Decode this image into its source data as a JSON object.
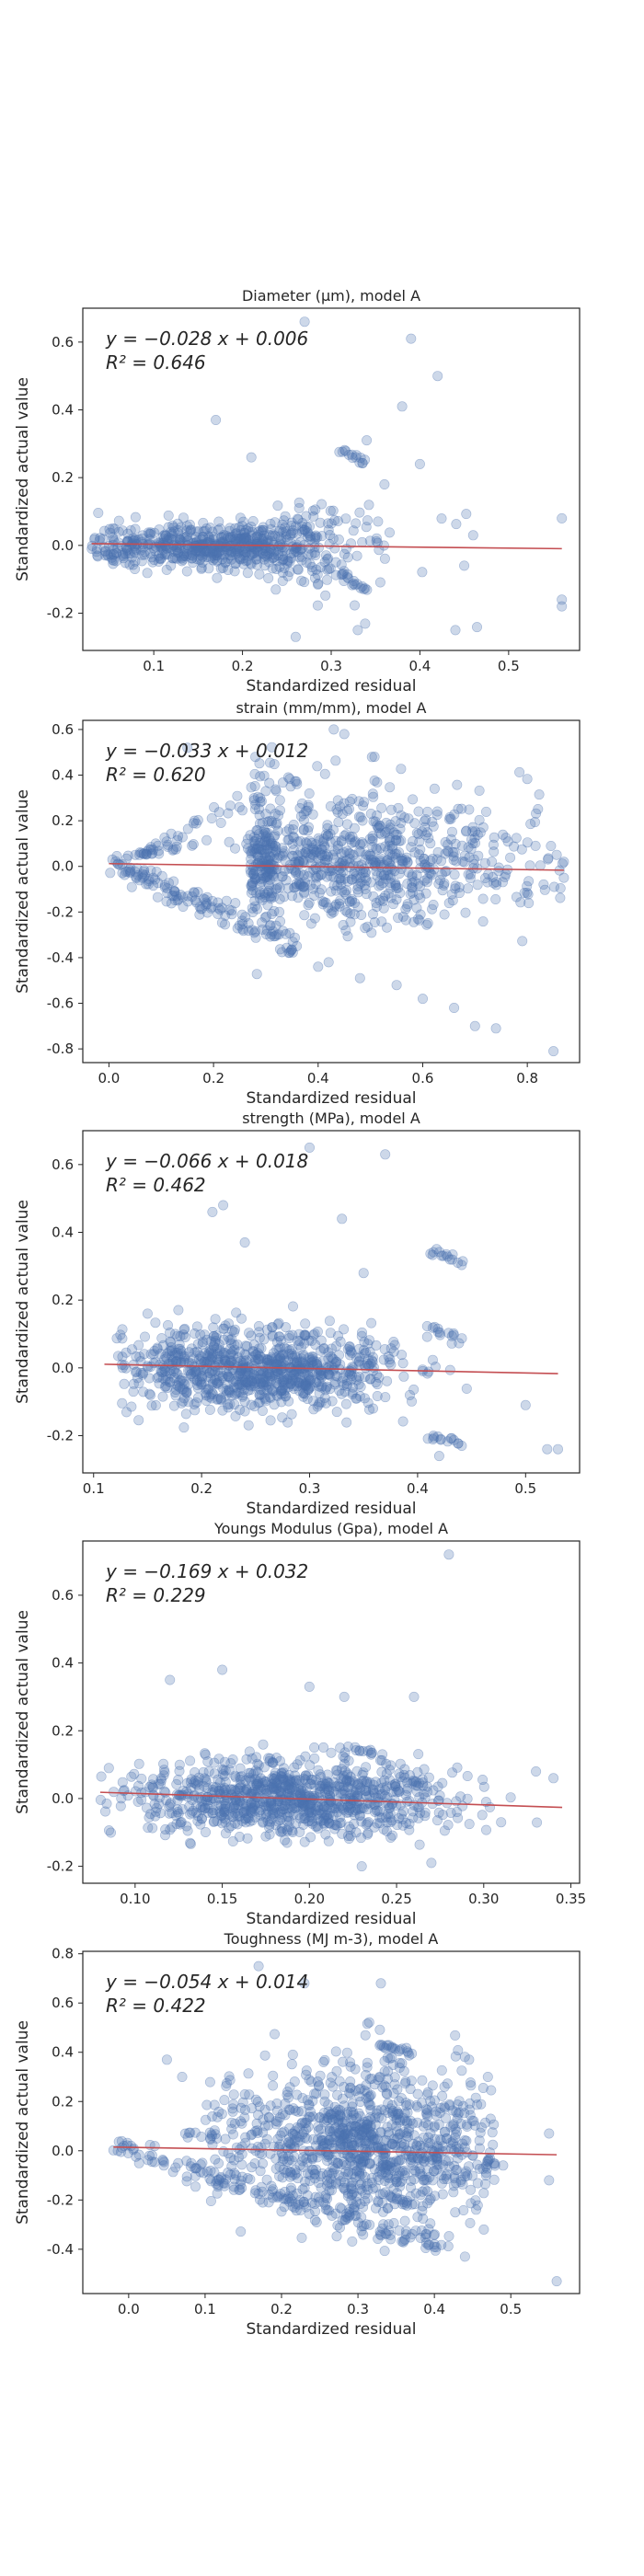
{
  "colors": {
    "points": "#4c72b0",
    "fit_line": "#c44e52",
    "frame": "#262626"
  },
  "chart_data": [
    {
      "type": "scatter",
      "title": "Diameter (µm), model A",
      "xlabel": "Standardized residual",
      "ylabel": "Standardized actual value",
      "xlim": [
        0.02,
        0.58
      ],
      "ylim": [
        -0.31,
        0.7
      ],
      "xticks": [
        0.1,
        0.2,
        0.3,
        0.4,
        0.5
      ],
      "yticks": [
        -0.2,
        0.0,
        0.2,
        0.4,
        0.6
      ],
      "equation": "y = −0.028 x + 0.006",
      "r2_text": "R² = 0.646",
      "fit": {
        "slope": -0.028,
        "intercept": 0.006,
        "x_range": [
          0.03,
          0.56
        ]
      },
      "cloud": {
        "seed": 11,
        "n": 700,
        "xc": 0.18,
        "xs": 0.08,
        "xmin": 0.03,
        "xmax": 0.47,
        "ys": 0.055,
        "shape": "tail",
        "clusters": [
          {
            "x": [
              0.31,
              0.34
            ],
            "y": [
              0.28,
              0.24
            ]
          },
          {
            "x": [
              0.31,
              0.34
            ],
            "y": [
              -0.08,
              -0.13
            ]
          }
        ]
      },
      "points": [
        [
          0.56,
          -0.18
        ],
        [
          0.56,
          -0.16
        ],
        [
          0.56,
          0.08
        ],
        [
          0.27,
          0.66
        ],
        [
          0.39,
          0.61
        ],
        [
          0.42,
          0.5
        ],
        [
          0.38,
          0.41
        ],
        [
          0.17,
          0.37
        ],
        [
          0.34,
          0.31
        ],
        [
          0.36,
          0.18
        ],
        [
          0.4,
          0.24
        ],
        [
          0.44,
          -0.25
        ],
        [
          0.33,
          -0.25
        ],
        [
          0.26,
          -0.27
        ],
        [
          0.21,
          0.26
        ],
        [
          0.46,
          0.03
        ],
        [
          0.45,
          -0.06
        ]
      ],
      "grid": false
    },
    {
      "type": "scatter",
      "title": "strain (mm/mm), model A",
      "xlabel": "Standardized residual",
      "ylabel": "Standardized actual value",
      "xlim": [
        -0.05,
        0.9
      ],
      "ylim": [
        -0.86,
        0.64
      ],
      "xticks": [
        0.0,
        0.2,
        0.4,
        0.6,
        0.8
      ],
      "yticks": [
        -0.8,
        -0.6,
        -0.4,
        -0.2,
        0.0,
        0.2,
        0.4,
        0.6
      ],
      "equation": "y = −0.033 x + 0.012",
      "r2_text": "R² = 0.620",
      "fit": {
        "slope": -0.033,
        "intercept": 0.012,
        "x_range": [
          0.0,
          0.87
        ]
      },
      "cloud": {
        "seed": 23,
        "n": 850,
        "xc": 0.45,
        "xs": 0.18,
        "xmin": 0.27,
        "xmax": 0.87,
        "ys": 0.11,
        "shape": "band",
        "diag": {
          "n": 140,
          "x0": 0.0,
          "x1": 0.36,
          "slope": -1.0,
          "jitter": 0.03
        },
        "upper": {
          "n": 60,
          "x0": 0.05,
          "x1": 0.3,
          "slope": 1.4
        },
        "clusters": []
      },
      "points": [
        [
          0.45,
          0.58
        ],
        [
          0.43,
          0.6
        ],
        [
          0.15,
          0.52
        ],
        [
          0.7,
          -0.7
        ],
        [
          0.74,
          -0.71
        ],
        [
          0.85,
          -0.81
        ],
        [
          0.66,
          -0.62
        ],
        [
          0.6,
          -0.58
        ],
        [
          0.55,
          -0.52
        ],
        [
          0.48,
          -0.49
        ],
        [
          0.42,
          -0.42
        ],
        [
          0.4,
          -0.44
        ],
        [
          0.87,
          -0.05
        ],
        [
          0.87,
          0.02
        ],
        [
          0.28,
          0.48
        ]
      ],
      "grid": false
    },
    {
      "type": "scatter",
      "title": "strength (MPa), model A",
      "xlabel": "Standardized residual",
      "ylabel": "Standardized actual value",
      "xlim": [
        0.09,
        0.55
      ],
      "ylim": [
        -0.31,
        0.7
      ],
      "xticks": [
        0.1,
        0.2,
        0.3,
        0.4,
        0.5
      ],
      "yticks": [
        -0.2,
        0.0,
        0.2,
        0.4,
        0.6
      ],
      "equation": "y = −0.066 x + 0.018",
      "r2_text": "R² = 0.462",
      "fit": {
        "slope": -0.066,
        "intercept": 0.018,
        "x_range": [
          0.11,
          0.53
        ]
      },
      "cloud": {
        "seed": 37,
        "n": 900,
        "xc": 0.25,
        "xs": 0.06,
        "xmin": 0.12,
        "xmax": 0.52,
        "ys": 0.06,
        "shape": "plain",
        "clusters": [
          {
            "x": [
              0.41,
              0.44
            ],
            "y": [
              0.35,
              0.31
            ]
          },
          {
            "x": [
              0.41,
              0.44
            ],
            "y": [
              -0.2,
              -0.23
            ]
          },
          {
            "x": [
              0.41,
              0.44
            ],
            "y": [
              0.12,
              0.08
            ]
          }
        ]
      },
      "points": [
        [
          0.3,
          0.65
        ],
        [
          0.37,
          0.63
        ],
        [
          0.22,
          0.48
        ],
        [
          0.21,
          0.46
        ],
        [
          0.53,
          -0.24
        ],
        [
          0.52,
          -0.24
        ],
        [
          0.5,
          -0.11
        ],
        [
          0.43,
          0.32
        ],
        [
          0.42,
          -0.26
        ],
        [
          0.33,
          0.44
        ],
        [
          0.24,
          0.37
        ],
        [
          0.15,
          0.16
        ],
        [
          0.35,
          0.28
        ]
      ],
      "grid": false
    },
    {
      "type": "scatter",
      "title": "Youngs Modulus (Gpa), model A",
      "xlabel": "Standardized residual",
      "ylabel": "Standardized actual value",
      "xlim": [
        0.07,
        0.355
      ],
      "ylim": [
        -0.25,
        0.76
      ],
      "xticks": [
        0.1,
        0.15,
        0.2,
        0.25,
        0.3,
        0.35
      ],
      "yticks": [
        -0.2,
        0.0,
        0.2,
        0.4,
        0.6
      ],
      "equation": "y = −0.169 x + 0.032",
      "r2_text": "R² = 0.229",
      "fit": {
        "slope": -0.169,
        "intercept": 0.032,
        "x_range": [
          0.08,
          0.345
        ]
      },
      "cloud": {
        "seed": 53,
        "n": 950,
        "xc": 0.19,
        "xs": 0.045,
        "xmin": 0.08,
        "xmax": 0.345,
        "ys": 0.055,
        "shape": "plain",
        "clusters": [
          {
            "x": [
              0.22,
              0.24
            ],
            "y": [
              0.15,
              0.13
            ]
          }
        ]
      },
      "points": [
        [
          0.28,
          0.72
        ],
        [
          0.15,
          0.38
        ],
        [
          0.12,
          0.35
        ],
        [
          0.2,
          0.33
        ],
        [
          0.27,
          -0.19
        ],
        [
          0.23,
          -0.2
        ],
        [
          0.34,
          0.06
        ],
        [
          0.33,
          0.08
        ],
        [
          0.31,
          -0.07
        ],
        [
          0.26,
          0.3
        ],
        [
          0.22,
          0.3
        ]
      ],
      "grid": false
    },
    {
      "type": "scatter",
      "title": "Toughness (MJ m-3), model A",
      "xlabel": "Standardized residual",
      "ylabel": "Standardized actual value",
      "xlim": [
        -0.06,
        0.59
      ],
      "ylim": [
        -0.58,
        0.81
      ],
      "xticks": [
        0.0,
        0.1,
        0.2,
        0.3,
        0.4,
        0.5
      ],
      "yticks": [
        -0.4,
        -0.2,
        0.0,
        0.2,
        0.4,
        0.6,
        0.8
      ],
      "equation": "y = −0.054 x + 0.014",
      "r2_text": "R² = 0.422",
      "fit": {
        "slope": -0.054,
        "intercept": 0.014,
        "x_range": [
          -0.02,
          0.56
        ]
      },
      "cloud": {
        "seed": 71,
        "n": 1000,
        "xc": 0.31,
        "xs": 0.09,
        "xmin": 0.1,
        "xmax": 0.48,
        "ys": 0.12,
        "shape": "band",
        "diag": {
          "n": 170,
          "x0": -0.02,
          "x1": 0.42,
          "slope": -0.95,
          "jitter": 0.025
        },
        "upper": {
          "n": 50,
          "x0": 0.05,
          "x1": 0.3,
          "slope": 1.6
        },
        "clusters": [
          {
            "x": [
              0.33,
              0.37
            ],
            "y": [
              0.43,
              0.39
            ]
          },
          {
            "x": [
              0.33,
              0.37
            ],
            "y": [
              -0.17,
              -0.22
            ]
          }
        ]
      },
      "points": [
        [
          0.56,
          -0.53
        ],
        [
          0.55,
          0.07
        ],
        [
          0.55,
          -0.12
        ],
        [
          0.17,
          0.75
        ],
        [
          0.23,
          0.68
        ],
        [
          0.33,
          0.68
        ],
        [
          0.44,
          -0.43
        ],
        [
          0.4,
          -0.38
        ],
        [
          0.05,
          0.37
        ],
        [
          0.07,
          0.3
        ],
        [
          0.49,
          -0.06
        ],
        [
          0.47,
          0.3
        ]
      ],
      "grid": false
    }
  ]
}
